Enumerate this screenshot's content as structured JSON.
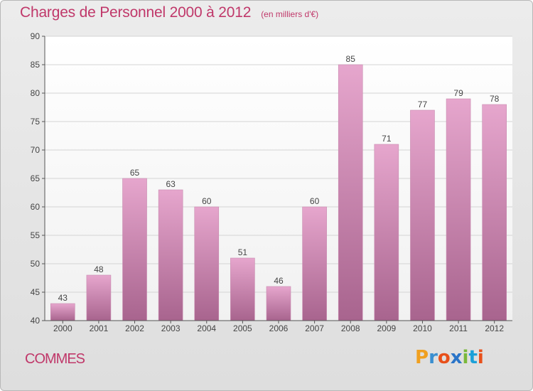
{
  "title": "Charges de Personnel 2000 à 2012",
  "subtitle": "(en milliers d'€)",
  "commune": "COMMES",
  "logo": {
    "letters": [
      "P",
      "r",
      "o",
      "x",
      "i",
      "t",
      "i"
    ],
    "colors": [
      "#f0a020",
      "#3a8fd0",
      "#e8501a",
      "#2a74c8",
      "#7ab83a",
      "#1aa0d8",
      "#e8501a"
    ]
  },
  "colors": {
    "title": "#c0386a",
    "bar_light": "#e6a6cd",
    "bar_dark": "#a8648e"
  },
  "chart_data": {
    "type": "bar",
    "categories": [
      "2000",
      "2001",
      "2002",
      "2003",
      "2004",
      "2005",
      "2006",
      "2007",
      "2008",
      "2009",
      "2010",
      "2011",
      "2012"
    ],
    "values": [
      43,
      48,
      65,
      63,
      60,
      51,
      46,
      60,
      85,
      71,
      77,
      79,
      78
    ],
    "ylim": [
      40,
      90
    ],
    "yticks": [
      40,
      45,
      50,
      55,
      60,
      65,
      70,
      75,
      80,
      85,
      90
    ],
    "grid": true,
    "data_labels": true
  }
}
